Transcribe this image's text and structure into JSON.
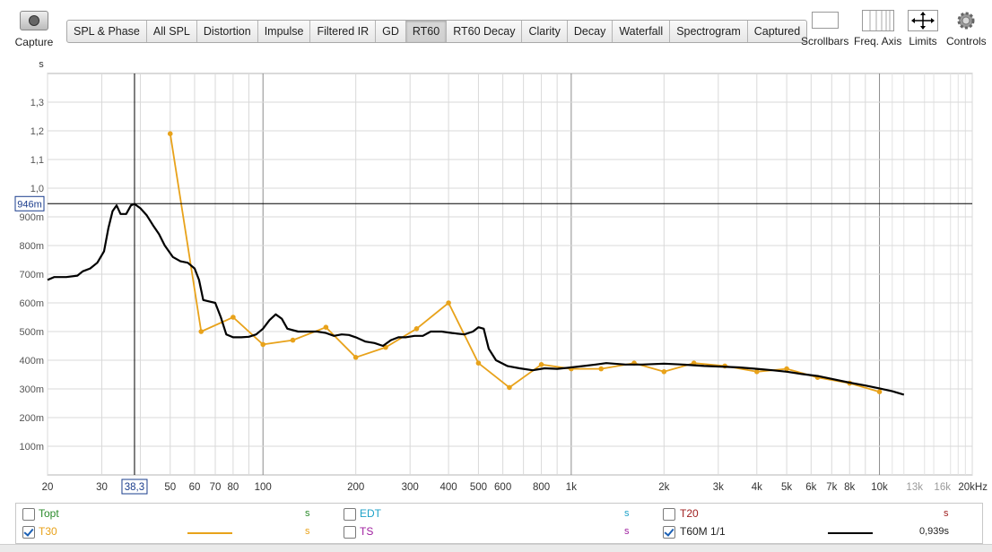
{
  "toolbar": {
    "capture_label": "Capture",
    "tabs": [
      "SPL & Phase",
      "All SPL",
      "Distortion",
      "Impulse",
      "Filtered IR",
      "GD",
      "RT60",
      "RT60 Decay",
      "Clarity",
      "Decay",
      "Waterfall",
      "Spectrogram",
      "Captured"
    ],
    "active_tab": "RT60",
    "right_tools": [
      {
        "label": "Scrollbars",
        "icon": "scrollbars-icon"
      },
      {
        "label": "Freq. Axis",
        "icon": "freq-axis-icon"
      },
      {
        "label": "Limits",
        "icon": "limits-icon"
      },
      {
        "label": "Controls",
        "icon": "controls-gear-icon"
      }
    ]
  },
  "chart_data": {
    "type": "line",
    "ylabel": "s",
    "xscale": "log",
    "xlim": [
      20,
      20000
    ],
    "ylim": [
      0,
      1.4
    ],
    "y_ticks": [
      {
        "v": 0.1,
        "label": "100m"
      },
      {
        "v": 0.2,
        "label": "200m"
      },
      {
        "v": 0.3,
        "label": "300m"
      },
      {
        "v": 0.4,
        "label": "400m"
      },
      {
        "v": 0.5,
        "label": "500m"
      },
      {
        "v": 0.6,
        "label": "600m"
      },
      {
        "v": 0.7,
        "label": "700m"
      },
      {
        "v": 0.8,
        "label": "800m"
      },
      {
        "v": 0.9,
        "label": "900m"
      },
      {
        "v": 1.0,
        "label": "1,0"
      },
      {
        "v": 1.1,
        "label": "1,1"
      },
      {
        "v": 1.2,
        "label": "1,2"
      },
      {
        "v": 1.3,
        "label": "1,3"
      }
    ],
    "x_ticks": [
      {
        "v": 20,
        "label": "20"
      },
      {
        "v": 30,
        "label": "30"
      },
      {
        "v": 50,
        "label": "50"
      },
      {
        "v": 60,
        "label": "60"
      },
      {
        "v": 70,
        "label": "70"
      },
      {
        "v": 80,
        "label": "80"
      },
      {
        "v": 100,
        "label": "100"
      },
      {
        "v": 200,
        "label": "200"
      },
      {
        "v": 300,
        "label": "300"
      },
      {
        "v": 400,
        "label": "400"
      },
      {
        "v": 500,
        "label": "500"
      },
      {
        "v": 600,
        "label": "600"
      },
      {
        "v": 800,
        "label": "800"
      },
      {
        "v": 1000,
        "label": "1k"
      },
      {
        "v": 2000,
        "label": "2k"
      },
      {
        "v": 3000,
        "label": "3k"
      },
      {
        "v": 4000,
        "label": "4k"
      },
      {
        "v": 5000,
        "label": "5k"
      },
      {
        "v": 6000,
        "label": "6k"
      },
      {
        "v": 7000,
        "label": "7k"
      },
      {
        "v": 8000,
        "label": "8k"
      },
      {
        "v": 10000,
        "label": "10k"
      },
      {
        "v": 13000,
        "label": "13k",
        "muted": true
      },
      {
        "v": 16000,
        "label": "16k",
        "muted": true
      },
      {
        "v": 20000,
        "label": "20kHz"
      }
    ],
    "cursor": {
      "x": 38.3,
      "y": 0.946,
      "x_label": "38,3",
      "y_label": "946m"
    },
    "series": [
      {
        "name": "T30",
        "color": "#e8a21a",
        "markers": true,
        "points": [
          [
            50,
            1.19
          ],
          [
            63,
            0.5
          ],
          [
            80,
            0.55
          ],
          [
            100,
            0.455
          ],
          [
            125,
            0.47
          ],
          [
            160,
            0.515
          ],
          [
            200,
            0.41
          ],
          [
            250,
            0.445
          ],
          [
            315,
            0.51
          ],
          [
            400,
            0.6
          ],
          [
            500,
            0.39
          ],
          [
            630,
            0.305
          ],
          [
            800,
            0.385
          ],
          [
            1000,
            0.37
          ],
          [
            1250,
            0.37
          ],
          [
            1600,
            0.39
          ],
          [
            2000,
            0.36
          ],
          [
            2500,
            0.39
          ],
          [
            3150,
            0.38
          ],
          [
            4000,
            0.36
          ],
          [
            5000,
            0.37
          ],
          [
            6300,
            0.34
          ],
          [
            8000,
            0.32
          ],
          [
            10000,
            0.29
          ]
        ]
      },
      {
        "name": "T60M 1/1",
        "color": "#000000",
        "markers": false,
        "points": [
          [
            20,
            0.68
          ],
          [
            21,
            0.69
          ],
          [
            23,
            0.69
          ],
          [
            25,
            0.695
          ],
          [
            26,
            0.71
          ],
          [
            27.5,
            0.72
          ],
          [
            29,
            0.74
          ],
          [
            30.5,
            0.78
          ],
          [
            31.5,
            0.86
          ],
          [
            32.5,
            0.92
          ],
          [
            33.5,
            0.94
          ],
          [
            34.5,
            0.91
          ],
          [
            36,
            0.91
          ],
          [
            37.3,
            0.94
          ],
          [
            38.3,
            0.945
          ],
          [
            40,
            0.93
          ],
          [
            42,
            0.905
          ],
          [
            44,
            0.87
          ],
          [
            46,
            0.84
          ],
          [
            48,
            0.8
          ],
          [
            51,
            0.76
          ],
          [
            54,
            0.745
          ],
          [
            57,
            0.74
          ],
          [
            60,
            0.72
          ],
          [
            62,
            0.68
          ],
          [
            64,
            0.61
          ],
          [
            67,
            0.605
          ],
          [
            70,
            0.6
          ],
          [
            73,
            0.55
          ],
          [
            76,
            0.49
          ],
          [
            80,
            0.48
          ],
          [
            85,
            0.48
          ],
          [
            90,
            0.482
          ],
          [
            95,
            0.49
          ],
          [
            100,
            0.51
          ],
          [
            105,
            0.54
          ],
          [
            110,
            0.56
          ],
          [
            115,
            0.545
          ],
          [
            120,
            0.51
          ],
          [
            130,
            0.5
          ],
          [
            140,
            0.5
          ],
          [
            150,
            0.5
          ],
          [
            160,
            0.495
          ],
          [
            170,
            0.485
          ],
          [
            180,
            0.49
          ],
          [
            190,
            0.488
          ],
          [
            200,
            0.48
          ],
          [
            215,
            0.465
          ],
          [
            230,
            0.46
          ],
          [
            245,
            0.45
          ],
          [
            260,
            0.47
          ],
          [
            275,
            0.48
          ],
          [
            290,
            0.48
          ],
          [
            310,
            0.485
          ],
          [
            330,
            0.485
          ],
          [
            350,
            0.5
          ],
          [
            380,
            0.5
          ],
          [
            410,
            0.495
          ],
          [
            450,
            0.49
          ],
          [
            480,
            0.5
          ],
          [
            500,
            0.515
          ],
          [
            520,
            0.51
          ],
          [
            540,
            0.44
          ],
          [
            570,
            0.4
          ],
          [
            620,
            0.38
          ],
          [
            680,
            0.372
          ],
          [
            750,
            0.365
          ],
          [
            820,
            0.372
          ],
          [
            900,
            0.37
          ],
          [
            1000,
            0.375
          ],
          [
            1100,
            0.38
          ],
          [
            1200,
            0.385
          ],
          [
            1300,
            0.39
          ],
          [
            1500,
            0.385
          ],
          [
            1700,
            0.385
          ],
          [
            2000,
            0.388
          ],
          [
            2300,
            0.385
          ],
          [
            2700,
            0.38
          ],
          [
            3000,
            0.378
          ],
          [
            3500,
            0.375
          ],
          [
            4000,
            0.37
          ],
          [
            4500,
            0.365
          ],
          [
            5000,
            0.36
          ],
          [
            5600,
            0.352
          ],
          [
            6300,
            0.345
          ],
          [
            7000,
            0.335
          ],
          [
            8000,
            0.322
          ],
          [
            9000,
            0.312
          ],
          [
            10000,
            0.302
          ],
          [
            11000,
            0.292
          ],
          [
            12000,
            0.28
          ]
        ]
      }
    ]
  },
  "legend": {
    "rows": [
      [
        {
          "name": "Topt",
          "checked": false,
          "color": "#2a8a2a",
          "unit": "s",
          "value": ""
        },
        {
          "name": "EDT",
          "checked": false,
          "color": "#1ea2c8",
          "unit": "s",
          "value": ""
        },
        {
          "name": "T20",
          "checked": false,
          "color": "#a02020",
          "unit": "s",
          "value": ""
        }
      ],
      [
        {
          "name": "T30",
          "checked": true,
          "color": "#e8a21a",
          "unit": "s",
          "value": "",
          "swatch": "#e8a21a"
        },
        {
          "name": "TS",
          "checked": false,
          "color": "#a020a0",
          "unit": "s",
          "value": ""
        },
        {
          "name": "T60M 1/1",
          "checked": true,
          "color": "#222222",
          "unit": "",
          "value": "0,939s",
          "swatch": "#000000"
        }
      ]
    ]
  }
}
